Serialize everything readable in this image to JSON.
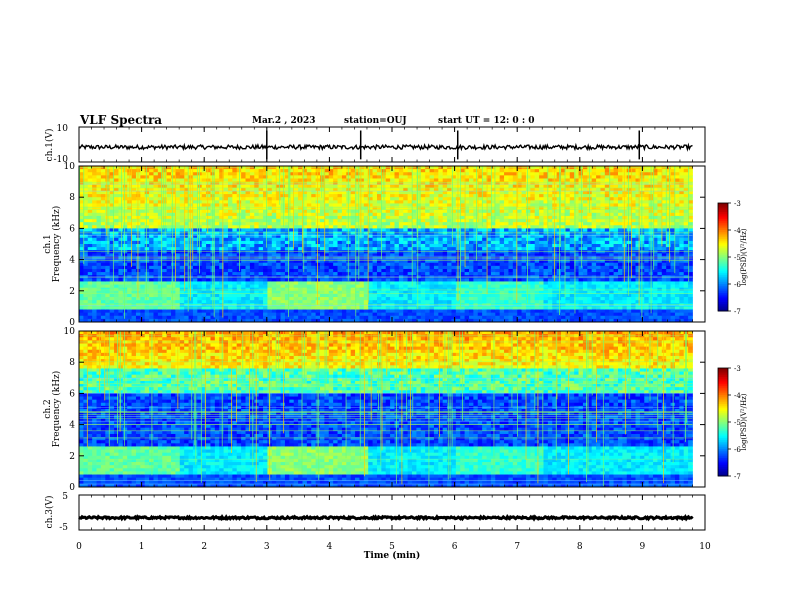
{
  "header": {
    "title": "VLF Spectra",
    "date": "Mar.2 , 2023",
    "station": "station=OUJ",
    "start": "start UT = 12: 0 : 0"
  },
  "chart_data": [
    {
      "type": "line",
      "name": "ch1-waveform",
      "ylabel": "ch.1(V)",
      "ylim": [
        -10,
        10
      ],
      "yticks": [
        "10",
        "-10"
      ],
      "xlim": [
        0,
        10
      ],
      "baseline": -1.5,
      "spikes": [
        3.0,
        4.5,
        6.05,
        8.95
      ]
    },
    {
      "type": "heatmap",
      "name": "ch1-spectrogram",
      "ylabel": "ch.1 Frequency (kHz)",
      "ylim": [
        0,
        10
      ],
      "yticks": [
        "10",
        "8",
        "6",
        "4",
        "2",
        "0"
      ],
      "xlim": [
        0,
        10
      ],
      "colorbar": {
        "label": "log(PSD)(V²/Hz)",
        "ticks": [
          "-3",
          "-4",
          "-5",
          "-6",
          "-7"
        ],
        "range": [
          -7,
          -3
        ]
      }
    },
    {
      "type": "heatmap",
      "name": "ch2-spectrogram",
      "ylabel": "ch.2 Frequency (kHz)",
      "ylim": [
        0,
        10
      ],
      "yticks": [
        "10",
        "8",
        "6",
        "4",
        "2",
        "0"
      ],
      "xlim": [
        0,
        10
      ],
      "colorbar": {
        "label": "log(PSD)(V²/Hz)",
        "ticks": [
          "-3",
          "-4",
          "-5",
          "-6",
          "-7"
        ],
        "range": [
          -7,
          -3
        ]
      }
    },
    {
      "type": "line",
      "name": "ch3-waveform",
      "ylabel": "ch.3(V)",
      "ylim": [
        -5,
        5
      ],
      "yticks": [
        "5",
        "-5"
      ],
      "xlim": [
        0,
        10
      ],
      "baseline": -1.5
    }
  ],
  "xaxis": {
    "label": "Time (min)",
    "ticks": [
      "0",
      "1",
      "2",
      "3",
      "4",
      "5",
      "6",
      "7",
      "8",
      "9",
      "10"
    ]
  }
}
